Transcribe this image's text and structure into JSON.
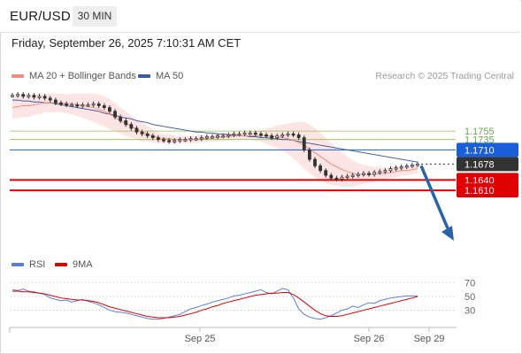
{
  "header": {
    "symbol": "EUR/USD",
    "timeframe": "30 MIN"
  },
  "datetime": "Friday, September 26, 2025 7:10:31 AM CET",
  "legend": {
    "items": [
      {
        "label": "MA 20 + Bollinger Bands",
        "color": "#f28b82"
      },
      {
        "label": "MA 50",
        "color": "#3d5a99"
      }
    ]
  },
  "copyright": "Research © 2025 Trading Central",
  "rsi_legend": {
    "items": [
      {
        "label": "RSI",
        "color": "#5b7fd6"
      },
      {
        "label": "9MA",
        "color": "#e00000"
      }
    ]
  },
  "colors": {
    "bollinger": "#fde0e0",
    "ma20": "#f28b82",
    "ma50": "#3d5a99",
    "candle": "#333333",
    "resistance": "#8fc24a",
    "pivot": "#1a5fd8",
    "support": "#e00000",
    "last": "#333333",
    "arrow": "#2b63a8"
  },
  "chart_data": [
    {
      "type": "line",
      "title": "",
      "y_range": [
        1.6065,
        1.6225
      ],
      "x_labels": [
        "Sep 25",
        "Sep 26",
        "Sep 29"
      ],
      "levels": [
        {
          "label": "1.1755",
          "value": 1.6175,
          "kind": "resistance"
        },
        {
          "label": "1.1735",
          "value": 1.6166,
          "kind": "resistance"
        },
        {
          "label": "1.1710",
          "value": 1.6155,
          "kind": "pivot"
        },
        {
          "label": "1.1678",
          "value": 1.614,
          "kind": "last"
        },
        {
          "label": "1.1640",
          "value": 1.6123,
          "kind": "support"
        },
        {
          "label": "1.1610",
          "value": 1.6112,
          "kind": "support"
        }
      ],
      "candles_close": [
        1.6213,
        1.6214,
        1.6212,
        1.6213,
        1.6211,
        1.6212,
        1.621,
        1.6208,
        1.6205,
        1.6204,
        1.6203,
        1.6203,
        1.6202,
        1.6203,
        1.6203,
        1.6204,
        1.6202,
        1.62,
        1.6196,
        1.619,
        1.6186,
        1.6182,
        1.6178,
        1.6174,
        1.6172,
        1.617,
        1.6168,
        1.6166,
        1.6165,
        1.6164,
        1.6165,
        1.6166,
        1.6166,
        1.6167,
        1.6167,
        1.6168,
        1.6169,
        1.6169,
        1.617,
        1.617,
        1.6171,
        1.6172,
        1.6172,
        1.6173,
        1.6173,
        1.6172,
        1.6171,
        1.617,
        1.6168,
        1.617,
        1.6171,
        1.6172,
        1.6171,
        1.6168,
        1.6155,
        1.6145,
        1.6138,
        1.6133,
        1.6128,
        1.6125,
        1.6124,
        1.6126,
        1.6127,
        1.6128,
        1.6129,
        1.613,
        1.6129,
        1.6131,
        1.6132,
        1.6133,
        1.6135,
        1.6136,
        1.6137,
        1.6138,
        1.6139,
        1.614
      ],
      "ma20": [
        1.62,
        1.6201,
        1.6202,
        1.6202,
        1.6203,
        1.6204,
        1.6205,
        1.6205,
        1.6205,
        1.6205,
        1.6204,
        1.6204,
        1.6203,
        1.6202,
        1.6201,
        1.62,
        1.6198,
        1.6196,
        1.6193,
        1.619,
        1.6186,
        1.6183,
        1.618,
        1.6177,
        1.6174,
        1.6172,
        1.617,
        1.6168,
        1.6167,
        1.6167,
        1.6166,
        1.6166,
        1.6166,
        1.6166,
        1.6166,
        1.6167,
        1.6167,
        1.6168,
        1.6168,
        1.6169,
        1.6169,
        1.617,
        1.617,
        1.617,
        1.617,
        1.617,
        1.617,
        1.617,
        1.6169,
        1.6169,
        1.6168,
        1.6167,
        1.6165,
        1.6163,
        1.616,
        1.6156,
        1.6152,
        1.6148,
        1.6144,
        1.614,
        1.6137,
        1.6134,
        1.6132,
        1.613,
        1.6129,
        1.6129,
        1.6129,
        1.6129,
        1.613,
        1.613,
        1.6131,
        1.6132,
        1.6133,
        1.6133,
        1.6134,
        1.6135
      ],
      "ma50": [
        1.6208,
        1.6208,
        1.6207,
        1.6207,
        1.6206,
        1.6206,
        1.6205,
        1.6205,
        1.6204,
        1.6203,
        1.6202,
        1.6201,
        1.62,
        1.6199,
        1.6198,
        1.6197,
        1.6196,
        1.6194,
        1.6193,
        1.6192,
        1.619,
        1.6189,
        1.6188,
        1.6186,
        1.6185,
        1.6184,
        1.6182,
        1.6181,
        1.618,
        1.6179,
        1.6178,
        1.6177,
        1.6176,
        1.6175,
        1.6174,
        1.6174,
        1.6173,
        1.6173,
        1.6172,
        1.6172,
        1.6171,
        1.6171,
        1.617,
        1.617,
        1.6169,
        1.6169,
        1.6168,
        1.6168,
        1.6167,
        1.6167,
        1.6166,
        1.6166,
        1.6165,
        1.6164,
        1.6163,
        1.6162,
        1.6161,
        1.616,
        1.6159,
        1.6158,
        1.6157,
        1.6156,
        1.6155,
        1.6154,
        1.6153,
        1.6152,
        1.6151,
        1.615,
        1.6149,
        1.6148,
        1.6147,
        1.6146,
        1.6145,
        1.6144,
        1.6143,
        1.6142
      ],
      "bb_width": [
        0.0012,
        0.0012,
        0.0012,
        0.0012,
        0.0011,
        0.0011,
        0.001,
        0.001,
        0.001,
        0.001,
        0.001,
        0.0011,
        0.0012,
        0.0013,
        0.0014,
        0.0015,
        0.0016,
        0.0016,
        0.0016,
        0.0015,
        0.0014,
        0.0013,
        0.0012,
        0.0011,
        0.001,
        0.0008,
        0.0007,
        0.0006,
        0.0005,
        0.0005,
        0.0004,
        0.0004,
        0.0004,
        0.0004,
        0.0004,
        0.0004,
        0.0004,
        0.0004,
        0.0004,
        0.0004,
        0.0004,
        0.0004,
        0.0004,
        0.0004,
        0.0004,
        0.0005,
        0.0006,
        0.0008,
        0.001,
        0.0012,
        0.0014,
        0.0016,
        0.0019,
        0.0022,
        0.0025,
        0.0026,
        0.0026,
        0.0025,
        0.0024,
        0.0022,
        0.002,
        0.0018,
        0.0016,
        0.0014,
        0.0012,
        0.001,
        0.0009,
        0.0008,
        0.0007,
        0.0006,
        0.0006,
        0.0006,
        0.0005,
        0.0005,
        0.0005,
        0.0005
      ]
    },
    {
      "type": "line",
      "title": "",
      "y_ticks": [
        "70",
        "50",
        "30"
      ],
      "y_range": [
        10,
        80
      ],
      "series": [
        {
          "name": "RSI",
          "values": [
            60,
            59,
            61,
            58,
            57,
            55,
            53,
            48,
            46,
            44,
            45,
            42,
            44,
            46,
            43,
            41,
            38,
            34,
            30,
            28,
            27,
            26,
            24,
            22,
            20,
            18,
            17,
            17,
            18,
            20,
            22,
            24,
            28,
            32,
            34,
            37,
            39,
            42,
            44,
            46,
            48,
            51,
            52,
            54,
            56,
            58,
            60,
            56,
            54,
            58,
            62,
            60,
            48,
            32,
            24,
            20,
            18,
            17,
            19,
            22,
            26,
            30,
            32,
            36,
            34,
            38,
            41,
            40,
            44,
            46,
            48,
            49,
            50,
            51,
            51,
            51
          ]
        },
        {
          "name": "9MA",
          "values": [
            58,
            58,
            57,
            57,
            56,
            55,
            54,
            52,
            50,
            48,
            47,
            46,
            45,
            45,
            44,
            43,
            41,
            38,
            35,
            33,
            31,
            29,
            27,
            25,
            23,
            21,
            20,
            19,
            19,
            19,
            20,
            21,
            23,
            25,
            27,
            30,
            32,
            35,
            37,
            40,
            42,
            44,
            46,
            48,
            50,
            52,
            53,
            54,
            55,
            55,
            56,
            56,
            53,
            48,
            42,
            36,
            30,
            25,
            22,
            21,
            21,
            22,
            24,
            26,
            28,
            30,
            32,
            34,
            36,
            38,
            40,
            42,
            44,
            46,
            48,
            50
          ]
        }
      ],
      "x_labels": [
        "Sep 25",
        "Sep 26",
        "Sep 29"
      ]
    }
  ]
}
